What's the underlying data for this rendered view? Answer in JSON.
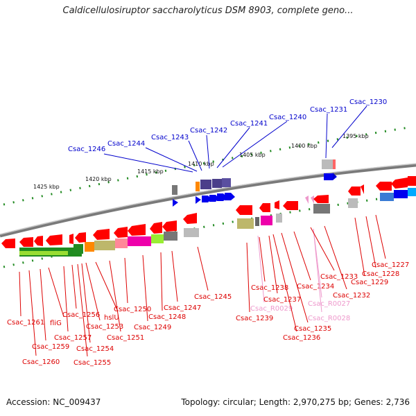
{
  "title": "Caldicellulosiruptor saccharolyticus DSM 8903, complete geno...",
  "footer": {
    "accession": "Accession: NC_009437",
    "stats": "Topology: circular; Length: 2,970,275 bp; Genes: 2,736"
  },
  "colors": {
    "red_gene": "#ff0000",
    "blue_gene": "#0000cc",
    "pink_gene": "#ee99cc",
    "backbone": "#8c8c8c",
    "tick": "#228b22"
  },
  "scale_labels": [
    {
      "text": "1425 kbp",
      "kbp": 1425
    },
    {
      "text": "1420 kbp",
      "kbp": 1420
    },
    {
      "text": "1415 kbp",
      "kbp": 1415
    },
    {
      "text": "1410 kbp",
      "kbp": 1410
    },
    {
      "text": "1405 kbp",
      "kbp": 1405
    },
    {
      "text": "1400 kbp",
      "kbp": 1400
    },
    {
      "text": "1395 kbp",
      "kbp": 1395
    }
  ],
  "genes_top": [
    {
      "name": "Csac_1246",
      "color": "blue"
    },
    {
      "name": "Csac_1244",
      "color": "blue"
    },
    {
      "name": "Csac_1243",
      "color": "blue"
    },
    {
      "name": "Csac_1242",
      "color": "blue"
    },
    {
      "name": "Csac_1241",
      "color": "blue"
    },
    {
      "name": "Csac_1240",
      "color": "blue"
    },
    {
      "name": "Csac_1231",
      "color": "blue"
    },
    {
      "name": "Csac_1230",
      "color": "blue"
    }
  ],
  "genes_bottom": [
    {
      "name": "Csac_1261",
      "color": "red"
    },
    {
      "name": "Csac_1260",
      "color": "red"
    },
    {
      "name": "Csac_1259",
      "color": "red"
    },
    {
      "name": "fliG",
      "color": "red"
    },
    {
      "name": "Csac_1257",
      "color": "red"
    },
    {
      "name": "Csac_1256",
      "color": "red"
    },
    {
      "name": "Csac_1255",
      "color": "red"
    },
    {
      "name": "Csac_1254",
      "color": "red"
    },
    {
      "name": "Csac_1253",
      "color": "red"
    },
    {
      "name": "hslU",
      "color": "red"
    },
    {
      "name": "Csac_1251",
      "color": "red"
    },
    {
      "name": "Csac_1250",
      "color": "red"
    },
    {
      "name": "Csac_1249",
      "color": "red"
    },
    {
      "name": "Csac_1248",
      "color": "red"
    },
    {
      "name": "Csac_1247",
      "color": "red"
    },
    {
      "name": "Csac_1245",
      "color": "red"
    },
    {
      "name": "Csac_1239",
      "color": "red"
    },
    {
      "name": "Csac_R0029",
      "color": "pink"
    },
    {
      "name": "Csac_1238",
      "color": "red"
    },
    {
      "name": "Csac_1237",
      "color": "red"
    },
    {
      "name": "Csac_1236",
      "color": "red"
    },
    {
      "name": "Csac_1235",
      "color": "red"
    },
    {
      "name": "Csac_1234",
      "color": "red"
    },
    {
      "name": "Csac_R0028",
      "color": "pink"
    },
    {
      "name": "Csac_R0027",
      "color": "pink"
    },
    {
      "name": "Csac_1233",
      "color": "red"
    },
    {
      "name": "Csac_1232",
      "color": "red"
    },
    {
      "name": "Csac_1229",
      "color": "red"
    },
    {
      "name": "Csac_1228",
      "color": "red"
    },
    {
      "name": "Csac_1227",
      "color": "red"
    }
  ]
}
